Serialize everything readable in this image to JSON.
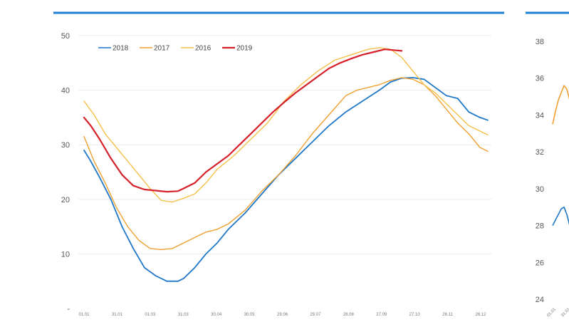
{
  "header": {
    "left_title_fragment": "",
    "right_title_fragment": "",
    "rule_color": "#1f7fd0"
  },
  "chart_data": [
    {
      "type": "line",
      "title": "",
      "xlabel": "",
      "ylabel": "",
      "ylim": [
        0,
        50
      ],
      "yticks": [
        "0",
        "10",
        "20",
        "30",
        "40",
        "50"
      ],
      "x_tick_labels": [
        "01.01",
        "31.01",
        "01.03",
        "31.03",
        "30.04",
        "30.05",
        "29.06",
        "29.07",
        "28.08",
        "27.09",
        "27.10",
        "26.11",
        "26.12"
      ],
      "grid": "horizontal",
      "legend_position": "top-left",
      "series": [
        {
          "name": "2018",
          "color": "#1f77c8",
          "x": [
            1,
            7,
            15,
            25,
            35,
            45,
            55,
            65,
            75,
            85,
            90,
            100,
            110,
            120,
            130,
            145,
            160,
            175,
            190,
            205,
            220,
            235,
            250,
            265,
            275,
            285,
            295,
            305,
            315,
            325,
            335,
            345,
            355,
            362
          ],
          "y": [
            29,
            27,
            24,
            20,
            15,
            11,
            7.5,
            6,
            5,
            5,
            5.5,
            7.5,
            10,
            12,
            14.5,
            17.5,
            21,
            24.5,
            27.5,
            30.5,
            33.5,
            36,
            38,
            40,
            41.5,
            42.2,
            42.3,
            42,
            40.5,
            39,
            38.5,
            36,
            35,
            34.5
          ]
        },
        {
          "name": "2017",
          "color": "#f0a030",
          "x": [
            1,
            10,
            20,
            30,
            40,
            50,
            60,
            70,
            80,
            90,
            100,
            110,
            120,
            130,
            145,
            160,
            175,
            190,
            205,
            220,
            235,
            245,
            255,
            265,
            275,
            285,
            295,
            305,
            315,
            325,
            335,
            345,
            355,
            362
          ],
          "y": [
            31.5,
            27,
            23,
            18.5,
            15,
            12.5,
            11,
            10.8,
            11,
            12,
            13,
            14,
            14.5,
            15.5,
            18,
            21.5,
            24.5,
            28,
            32,
            35.5,
            39,
            40,
            40.5,
            41,
            41.8,
            42.3,
            42,
            41,
            39,
            36.5,
            34,
            32,
            29.5,
            28.8
          ]
        },
        {
          "name": "2016",
          "color": "#f5c04a",
          "x": [
            1,
            10,
            20,
            30,
            40,
            50,
            60,
            70,
            80,
            90,
            100,
            110,
            120,
            135,
            150,
            165,
            180,
            195,
            210,
            225,
            240,
            255,
            265,
            275,
            285,
            295,
            305,
            315,
            325,
            335,
            345,
            355,
            362
          ],
          "y": [
            38,
            35.5,
            32,
            29.5,
            27,
            24.5,
            22,
            19.8,
            19.5,
            20.2,
            21,
            23,
            25.5,
            28,
            31,
            34,
            38,
            41,
            43.5,
            45.5,
            46.5,
            47.5,
            47.8,
            47.5,
            46,
            43.5,
            41,
            39.5,
            37.5,
            35.5,
            33.5,
            32.5,
            31.8
          ]
        },
        {
          "name": "2019",
          "color": "#d6202a",
          "x": [
            1,
            7,
            15,
            25,
            35,
            45,
            55,
            65,
            75,
            85,
            90,
            100,
            110,
            120,
            130,
            140,
            150,
            160,
            170,
            180,
            190,
            200,
            210,
            220,
            230,
            240,
            250,
            260,
            270,
            280,
            285
          ],
          "y": [
            35,
            33.5,
            31,
            27.5,
            24.5,
            22.5,
            21.8,
            21.6,
            21.4,
            21.5,
            22,
            23,
            25,
            26.5,
            28,
            30,
            32,
            34,
            36,
            37.8,
            39.5,
            41,
            42.5,
            44,
            45,
            45.8,
            46.5,
            47,
            47.5,
            47.3,
            47.2
          ]
        }
      ]
    },
    {
      "type": "line",
      "title": "",
      "xlabel": "",
      "ylabel": "",
      "ylim": [
        24,
        39
      ],
      "yticks": [
        "24",
        "26",
        "28",
        "30",
        "32",
        "34",
        "36",
        "38"
      ],
      "x_tick_labels": [
        "01.01",
        "31.01"
      ],
      "grid": "none",
      "series": [
        {
          "name": "",
          "color": "#f0a030",
          "x": [
            0,
            1,
            2,
            3,
            4,
            5,
            6
          ],
          "y": [
            33.5,
            34.2,
            34.8,
            35.2,
            35.6,
            35.4,
            34.8
          ]
        },
        {
          "name": "",
          "color": "#1f77c8",
          "x": [
            0,
            1,
            2,
            3,
            4,
            5,
            6
          ],
          "y": [
            28,
            28.3,
            28.6,
            28.9,
            29,
            28.6,
            28
          ]
        }
      ]
    }
  ]
}
